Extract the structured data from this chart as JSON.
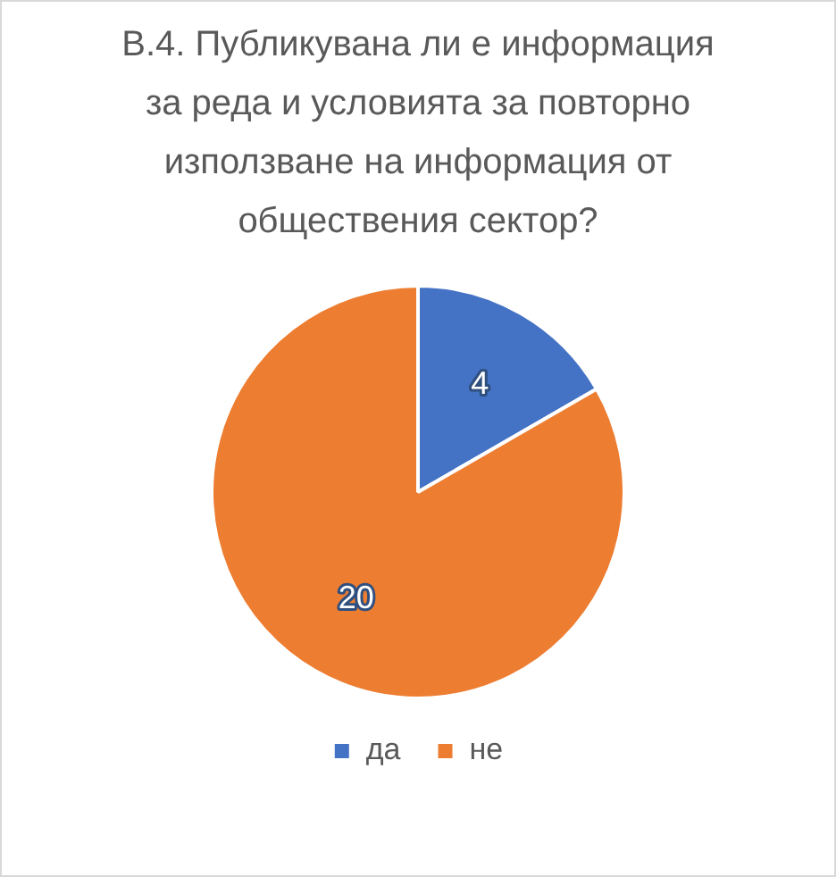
{
  "chart_data": {
    "type": "pie",
    "title": "В.4. Публикувана ли е информация за реда и условията за повторно използване на информация от обществения сектор?",
    "categories": [
      "да",
      "не"
    ],
    "values": [
      4,
      20
    ],
    "colors": [
      "#4472c4",
      "#ed7d31"
    ],
    "data_labels": true,
    "legend": "bottom"
  }
}
